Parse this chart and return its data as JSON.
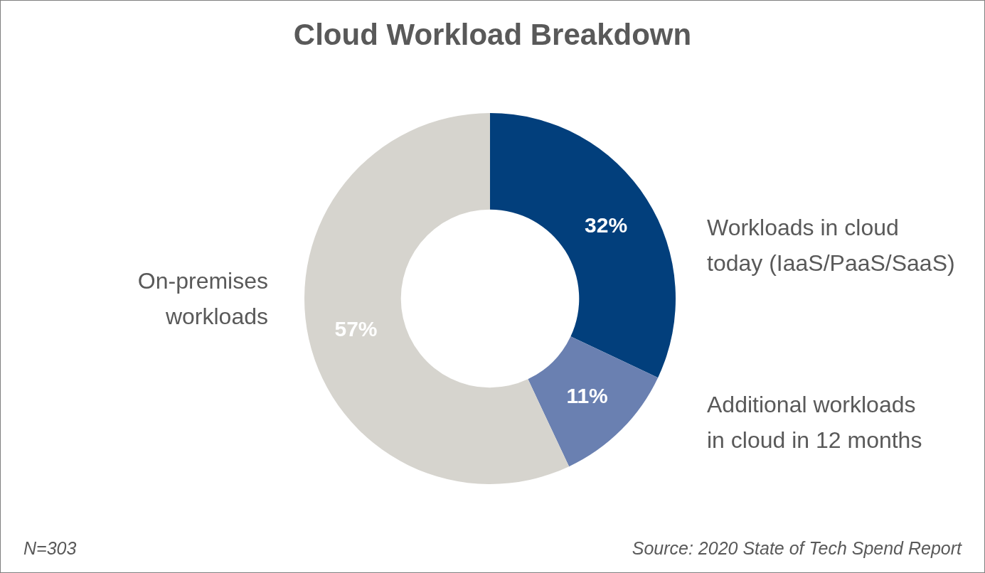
{
  "chart_data": {
    "type": "donut",
    "title": "Cloud Workload Breakdown",
    "categories": [
      "Workloads in cloud today (IaaS/PaaS/SaaS)",
      "Additional workloads in cloud in 12 months",
      "On-premises workloads"
    ],
    "values": [
      32,
      11,
      57
    ],
    "colors": [
      "#023f7c",
      "#6a80b1",
      "#d6d4ce"
    ],
    "value_labels": [
      "32%",
      "11%",
      "57%"
    ],
    "annotations": [
      "N=303",
      "Source: 2020 State of Tech Spend Report"
    ]
  }
}
